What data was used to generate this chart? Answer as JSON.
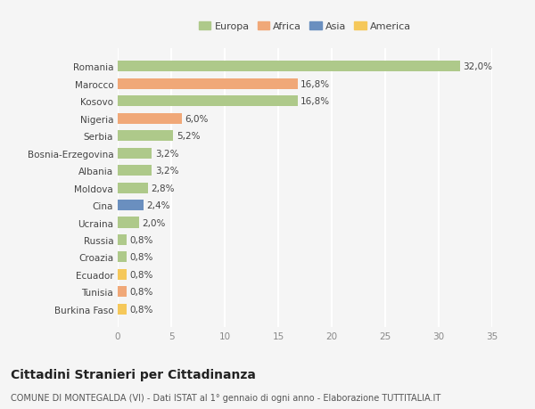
{
  "countries": [
    "Romania",
    "Marocco",
    "Kosovo",
    "Nigeria",
    "Serbia",
    "Bosnia-Erzegovina",
    "Albania",
    "Moldova",
    "Cina",
    "Ucraina",
    "Russia",
    "Croazia",
    "Ecuador",
    "Tunisia",
    "Burkina Faso"
  ],
  "values": [
    32.0,
    16.8,
    16.8,
    6.0,
    5.2,
    3.2,
    3.2,
    2.8,
    2.4,
    2.0,
    0.8,
    0.8,
    0.8,
    0.8,
    0.8
  ],
  "labels": [
    "32,0%",
    "16,8%",
    "16,8%",
    "6,0%",
    "5,2%",
    "3,2%",
    "3,2%",
    "2,8%",
    "2,4%",
    "2,0%",
    "0,8%",
    "0,8%",
    "0,8%",
    "0,8%",
    "0,8%"
  ],
  "colors": [
    "#aec98a",
    "#f0a878",
    "#aec98a",
    "#f0a878",
    "#aec98a",
    "#aec98a",
    "#aec98a",
    "#aec98a",
    "#6a8fbf",
    "#aec98a",
    "#aec98a",
    "#aec98a",
    "#f5c85a",
    "#f0a878",
    "#f5c85a"
  ],
  "legend": {
    "Europa": "#aec98a",
    "Africa": "#f0a878",
    "Asia": "#6a8fbf",
    "America": "#f5c85a"
  },
  "title": "Cittadini Stranieri per Cittadinanza",
  "subtitle": "COMUNE DI MONTEGALDA (VI) - Dati ISTAT al 1° gennaio di ogni anno - Elaborazione TUTTITALIA.IT",
  "xlim": [
    0,
    35
  ],
  "xticks": [
    0,
    5,
    10,
    15,
    20,
    25,
    30,
    35
  ],
  "bg_color": "#f5f5f5",
  "grid_color": "#ffffff",
  "bar_height": 0.62,
  "label_fontsize": 7.5,
  "tick_fontsize": 7.5,
  "title_fontsize": 10,
  "subtitle_fontsize": 7
}
